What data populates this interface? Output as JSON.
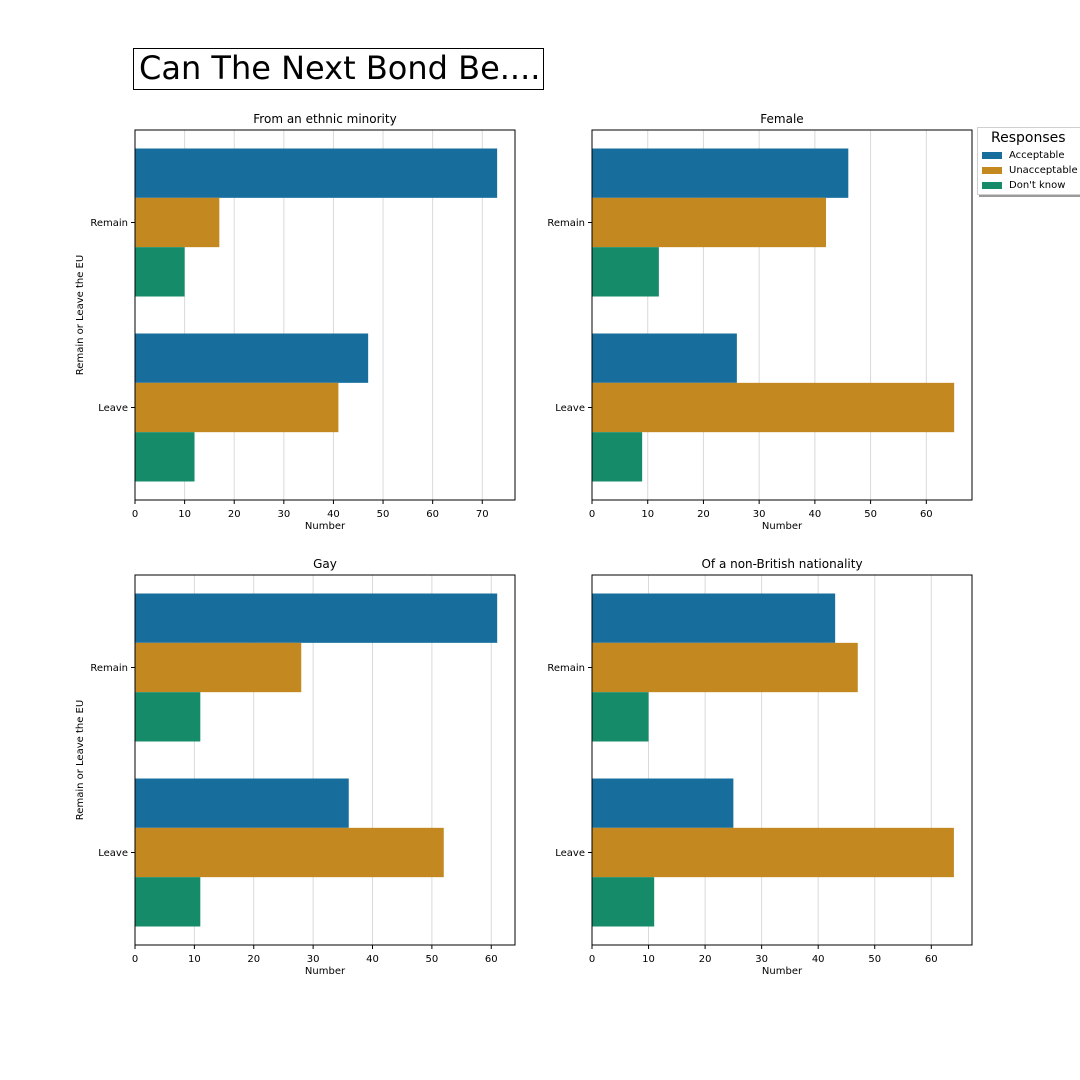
{
  "figure_title": "Can The Next Bond Be....",
  "legend": {
    "title": "Responses",
    "entries": [
      {
        "label": "Acceptable",
        "color": "#176d9c"
      },
      {
        "label": "Unacceptable",
        "color": "#c38820"
      },
      {
        "label": "Don't know",
        "color": "#158b6a"
      }
    ]
  },
  "chart_data": [
    {
      "type": "bar",
      "orientation": "horizontal",
      "title": "From an ethnic minority",
      "xlabel": "Number",
      "ylabel": "Remain or Leave the EU",
      "categories": [
        "Remain",
        "Leave"
      ],
      "xlim": [
        0,
        76.6
      ],
      "xticks": [
        0,
        10,
        20,
        30,
        40,
        50,
        60,
        70
      ],
      "grid": "x",
      "series": [
        {
          "name": "Acceptable",
          "values": [
            73,
            47
          ]
        },
        {
          "name": "Unacceptable",
          "values": [
            17,
            41
          ]
        },
        {
          "name": "Don't know",
          "values": [
            10,
            12
          ]
        }
      ]
    },
    {
      "type": "bar",
      "orientation": "horizontal",
      "title": "Female",
      "xlabel": "Number",
      "ylabel": "",
      "categories": [
        "Remain",
        "Leave"
      ],
      "xlim": [
        0,
        68.2
      ],
      "xticks": [
        0,
        10,
        20,
        30,
        40,
        50,
        60
      ],
      "grid": "x",
      "series": [
        {
          "name": "Acceptable",
          "values": [
            46,
            26
          ]
        },
        {
          "name": "Unacceptable",
          "values": [
            42,
            65
          ]
        },
        {
          "name": "Don't know",
          "values": [
            12,
            9
          ]
        }
      ]
    },
    {
      "type": "bar",
      "orientation": "horizontal",
      "title": "Gay",
      "xlabel": "Number",
      "ylabel": "Remain or Leave the EU",
      "categories": [
        "Remain",
        "Leave"
      ],
      "xlim": [
        0,
        64
      ],
      "xticks": [
        0,
        10,
        20,
        30,
        40,
        50,
        60
      ],
      "grid": "x",
      "series": [
        {
          "name": "Acceptable",
          "values": [
            61,
            36
          ]
        },
        {
          "name": "Unacceptable",
          "values": [
            28,
            52
          ]
        },
        {
          "name": "Don't know",
          "values": [
            11,
            11
          ]
        }
      ]
    },
    {
      "type": "bar",
      "orientation": "horizontal",
      "title": "Of a non-British nationality",
      "xlabel": "Number",
      "ylabel": "",
      "categories": [
        "Remain",
        "Leave"
      ],
      "xlim": [
        0,
        67.2
      ],
      "xticks": [
        0,
        10,
        20,
        30,
        40,
        50,
        60
      ],
      "grid": "x",
      "series": [
        {
          "name": "Acceptable",
          "values": [
            43,
            25
          ]
        },
        {
          "name": "Unacceptable",
          "values": [
            47,
            64
          ]
        },
        {
          "name": "Don't know",
          "values": [
            10,
            11
          ]
        }
      ]
    }
  ]
}
